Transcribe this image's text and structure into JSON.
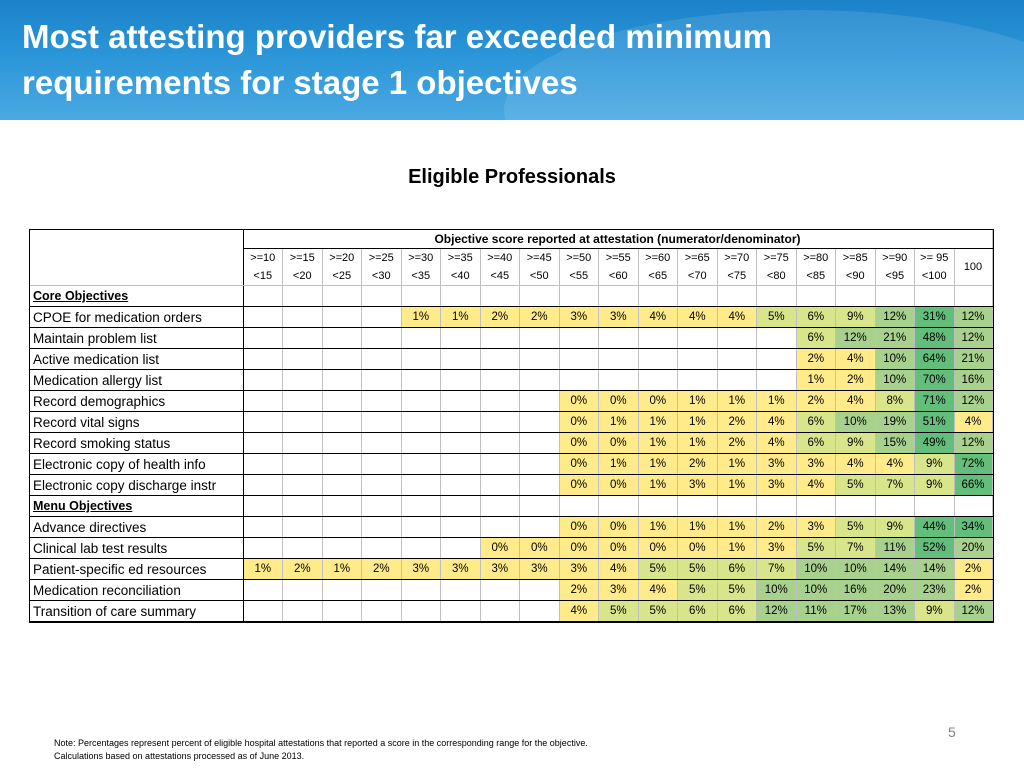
{
  "header": {
    "title": "Most attesting providers far exceeded minimum requirements for stage 1 objectives"
  },
  "table": {
    "subtitle": "Eligible Professionals",
    "span_header": "Objective score reported at attestation (numerator/denominator)",
    "ranges": [
      [
        ">=10",
        "<15"
      ],
      [
        ">=15",
        "<20"
      ],
      [
        ">=20",
        "<25"
      ],
      [
        ">=25",
        "<30"
      ],
      [
        ">=30",
        "<35"
      ],
      [
        ">=35",
        "<40"
      ],
      [
        ">=40",
        "<45"
      ],
      [
        ">=45",
        "<50"
      ],
      [
        ">=50",
        "<55"
      ],
      [
        ">=55",
        "<60"
      ],
      [
        ">=60",
        "<65"
      ],
      [
        ">=65",
        "<70"
      ],
      [
        ">=70",
        "<75"
      ],
      [
        ">=75",
        "<80"
      ],
      [
        ">=80",
        "<85"
      ],
      [
        ">=85",
        "<90"
      ],
      [
        ">=90",
        "<95"
      ],
      [
        ">= 95",
        "<100"
      ]
    ],
    "last_col": "100",
    "sections": [
      {
        "title": "Core Objectives",
        "rows": [
          {
            "label": "CPOE for medication orders",
            "cells": [
              "",
              "",
              "",
              "",
              "1%",
              "1%",
              "2%",
              "2%",
              "3%",
              "3%",
              "4%",
              "4%",
              "4%",
              "5%",
              "6%",
              "9%",
              "12%",
              "31%",
              "12%"
            ]
          },
          {
            "label": "Maintain problem list",
            "cells": [
              "",
              "",
              "",
              "",
              "",
              "",
              "",
              "",
              "",
              "",
              "",
              "",
              "",
              "",
              "6%",
              "12%",
              "21%",
              "48%",
              "12%"
            ]
          },
          {
            "label": "Active medication list",
            "cells": [
              "",
              "",
              "",
              "",
              "",
              "",
              "",
              "",
              "",
              "",
              "",
              "",
              "",
              "",
              "2%",
              "4%",
              "10%",
              "64%",
              "21%"
            ]
          },
          {
            "label": "Medication allergy list",
            "cells": [
              "",
              "",
              "",
              "",
              "",
              "",
              "",
              "",
              "",
              "",
              "",
              "",
              "",
              "",
              "1%",
              "2%",
              "10%",
              "70%",
              "16%"
            ]
          },
          {
            "label": "Record demographics",
            "cells": [
              "",
              "",
              "",
              "",
              "",
              "",
              "",
              "",
              "0%",
              "0%",
              "0%",
              "1%",
              "1%",
              "1%",
              "2%",
              "4%",
              "8%",
              "71%",
              "12%"
            ]
          },
          {
            "label": "Record vital signs",
            "cells": [
              "",
              "",
              "",
              "",
              "",
              "",
              "",
              "",
              "0%",
              "1%",
              "1%",
              "1%",
              "2%",
              "4%",
              "6%",
              "10%",
              "19%",
              "51%",
              "4%"
            ]
          },
          {
            "label": "Record smoking status",
            "cells": [
              "",
              "",
              "",
              "",
              "",
              "",
              "",
              "",
              "0%",
              "0%",
              "1%",
              "1%",
              "2%",
              "4%",
              "6%",
              "9%",
              "15%",
              "49%",
              "12%"
            ]
          },
          {
            "label": "Electronic copy of health info",
            "cells": [
              "",
              "",
              "",
              "",
              "",
              "",
              "",
              "",
              "0%",
              "1%",
              "1%",
              "2%",
              "1%",
              "3%",
              "3%",
              "4%",
              "4%",
              "9%",
              "72%"
            ]
          },
          {
            "label": "Electronic copy discharge instr",
            "cells": [
              "",
              "",
              "",
              "",
              "",
              "",
              "",
              "",
              "0%",
              "0%",
              "1%",
              "3%",
              "1%",
              "3%",
              "4%",
              "5%",
              "7%",
              "9%",
              "66%"
            ]
          }
        ]
      },
      {
        "title": "Menu Objectives",
        "rows": [
          {
            "label": "Advance directives",
            "cells": [
              "",
              "",
              "",
              "",
              "",
              "",
              "",
              "",
              "0%",
              "0%",
              "1%",
              "1%",
              "1%",
              "2%",
              "3%",
              "5%",
              "9%",
              "44%",
              "34%"
            ]
          },
          {
            "label": "Clinical lab test results",
            "cells": [
              "",
              "",
              "",
              "",
              "",
              "",
              "0%",
              "0%",
              "0%",
              "0%",
              "0%",
              "0%",
              "1%",
              "3%",
              "5%",
              "7%",
              "11%",
              "52%",
              "20%"
            ]
          },
          {
            "label": "Patient-specific ed resources",
            "cells": [
              "1%",
              "2%",
              "1%",
              "2%",
              "3%",
              "3%",
              "3%",
              "3%",
              "3%",
              "4%",
              "5%",
              "5%",
              "6%",
              "7%",
              "10%",
              "10%",
              "14%",
              "14%",
              "2%"
            ]
          },
          {
            "label": "Medication reconciliation",
            "cells": [
              "",
              "",
              "",
              "",
              "",
              "",
              "",
              "",
              "2%",
              "3%",
              "4%",
              "5%",
              "5%",
              "10%",
              "10%",
              "16%",
              "20%",
              "23%",
              "2%"
            ]
          },
          {
            "label": "Transition of care summary",
            "cells": [
              "",
              "",
              "",
              "",
              "",
              "",
              "",
              "",
              "4%",
              "5%",
              "5%",
              "6%",
              "6%",
              "12%",
              "11%",
              "17%",
              "13%",
              "9%",
              "12%"
            ]
          }
        ]
      }
    ]
  },
  "footer": {
    "page_number": "5",
    "note_line1": "Note: Percentages represent percent of eligible hospital attestations that reported a score in the corresponding range for the objective.",
    "note_line2": "Calculations based on attestations processed as of June 2013."
  },
  "colors": {
    "header_blue": "#1c82c9",
    "heat_low": "#ffeb8a",
    "heat_mid_low": "#d8e58a",
    "heat_mid_high": "#a9d18e",
    "heat_high": "#63be7b"
  }
}
